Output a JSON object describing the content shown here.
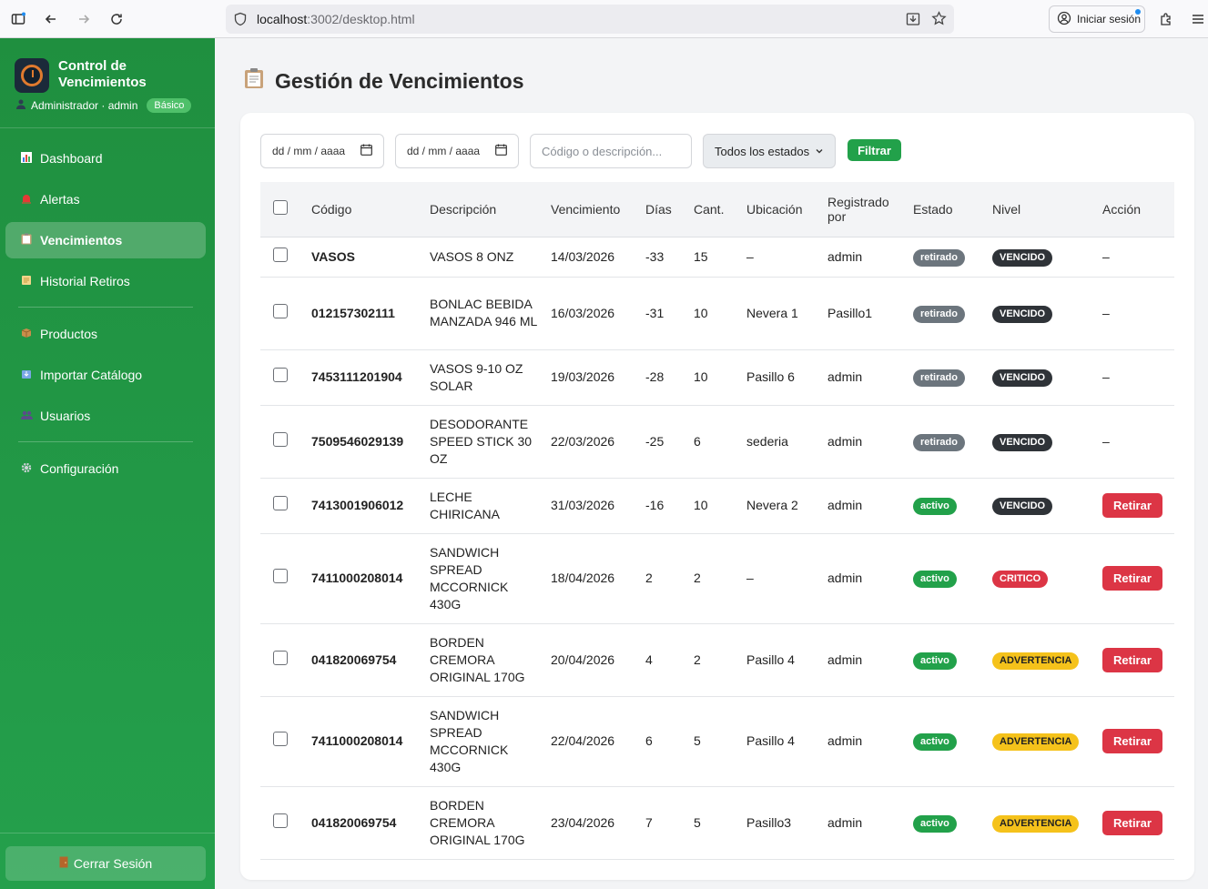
{
  "browser": {
    "url_host": "localhost",
    "url_path": ":3002/desktop.html",
    "signin_label": "Iniciar sesión"
  },
  "sidebar": {
    "brand_title": "Control de Vencimientos",
    "user_text": "Administrador · admin",
    "plan_badge": "Básico",
    "items": [
      {
        "label": "Dashboard",
        "icon": "chart-icon"
      },
      {
        "label": "Alertas",
        "icon": "siren-icon"
      },
      {
        "label": "Vencimientos",
        "icon": "clipboard-icon"
      },
      {
        "label": "Historial Retiros",
        "icon": "scroll-icon"
      },
      {
        "label": "Productos",
        "icon": "box-icon"
      },
      {
        "label": "Importar Catálogo",
        "icon": "import-icon"
      },
      {
        "label": "Usuarios",
        "icon": "users-icon"
      },
      {
        "label": "Configuración",
        "icon": "gear-icon"
      }
    ],
    "logout_label": "Cerrar Sesión"
  },
  "page": {
    "title": "Gestión de Vencimientos"
  },
  "filters": {
    "date_from_placeholder": "dd / mm / aaaa",
    "date_to_placeholder": "dd / mm / aaaa",
    "search_placeholder": "Código o descripción...",
    "status_selected": "Todos los estados",
    "filter_button": "Filtrar"
  },
  "table": {
    "headers": [
      "Código",
      "Descripción",
      "Vencimiento",
      "Días",
      "Cant.",
      "Ubicación",
      "Registrado por",
      "Estado",
      "Nivel",
      "Acción"
    ],
    "rows": [
      {
        "code": "VASOS",
        "desc": "VASOS 8 ONZ",
        "venc": "14/03/2026",
        "dias": "-33",
        "cant": "15",
        "ubic": "–",
        "reg": "admin",
        "estado": "retirado",
        "nivel": "VENCIDO",
        "accion": "–"
      },
      {
        "code": "012157302111",
        "desc": "BONLAC BEBIDA MANZADA 946 ML",
        "venc": "16/03/2026",
        "dias": "-31",
        "cant": "10",
        "ubic": "Nevera 1",
        "reg": "Pasillo1",
        "estado": "retirado",
        "nivel": "VENCIDO",
        "accion": "–"
      },
      {
        "code": "7453111201904",
        "desc": "VASOS 9-10 OZ SOLAR",
        "venc": "19/03/2026",
        "dias": "-28",
        "cant": "10",
        "ubic": "Pasillo 6",
        "reg": "admin",
        "estado": "retirado",
        "nivel": "VENCIDO",
        "accion": "–"
      },
      {
        "code": "7509546029139",
        "desc": "DESODORANTE SPEED STICK 30 OZ",
        "venc": "22/03/2026",
        "dias": "-25",
        "cant": "6",
        "ubic": "sederia",
        "reg": "admin",
        "estado": "retirado",
        "nivel": "VENCIDO",
        "accion": "–"
      },
      {
        "code": "7413001906012",
        "desc": "LECHE CHIRICANA",
        "venc": "31/03/2026",
        "dias": "-16",
        "cant": "10",
        "ubic": "Nevera 2",
        "reg": "admin",
        "estado": "activo",
        "nivel": "VENCIDO",
        "accion": "Retirar"
      },
      {
        "code": "7411000208014",
        "desc": "SANDWICH SPREAD MCCORNICK 430G",
        "venc": "18/04/2026",
        "dias": "2",
        "cant": "2",
        "ubic": "–",
        "reg": "admin",
        "estado": "activo",
        "nivel": "CRITICO",
        "accion": "Retirar"
      },
      {
        "code": "041820069754",
        "desc": "BORDEN CREMORA ORIGINAL 170G",
        "venc": "20/04/2026",
        "dias": "4",
        "cant": "2",
        "ubic": "Pasillo 4",
        "reg": "admin",
        "estado": "activo",
        "nivel": "ADVERTENCIA",
        "accion": "Retirar"
      },
      {
        "code": "7411000208014",
        "desc": "SANDWICH SPREAD MCCORNICK 430G",
        "venc": "22/04/2026",
        "dias": "6",
        "cant": "5",
        "ubic": "Pasillo 4",
        "reg": "admin",
        "estado": "activo",
        "nivel": "ADVERTENCIA",
        "accion": "Retirar"
      },
      {
        "code": "041820069754",
        "desc": "BORDEN CREMORA ORIGINAL 170G",
        "venc": "23/04/2026",
        "dias": "7",
        "cant": "5",
        "ubic": "Pasillo3",
        "reg": "admin",
        "estado": "activo",
        "nivel": "ADVERTENCIA",
        "accion": "Retirar"
      }
    ]
  }
}
